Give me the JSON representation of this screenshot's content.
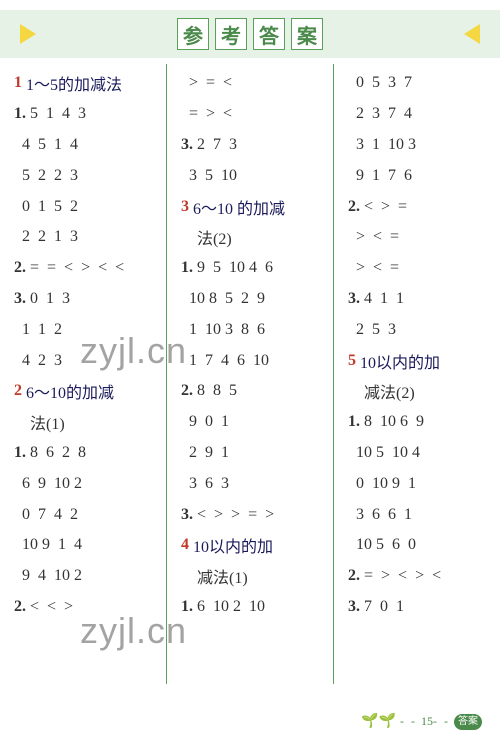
{
  "title_chars": [
    "参",
    "考",
    "答",
    "案"
  ],
  "page_number": "15",
  "brand": "答案圈",
  "watermark": "zyjl.cn",
  "colors": {
    "title_bg": "#e6f2e6",
    "title_border": "#5aa05a",
    "title_text": "#4a8a4a",
    "triangle": "#f5d742",
    "divider": "#5aa05a",
    "section_num": "#c0392b",
    "body_text": "#333333",
    "header_text": "#1a1a5a"
  },
  "col1": [
    {
      "t": "sec",
      "num": "1",
      "text": " 1～5的加减法"
    },
    {
      "t": "item",
      "num": "1.",
      "text": "5  1  4  3"
    },
    {
      "t": "plain",
      "text": "  4  5  1  4"
    },
    {
      "t": "plain",
      "text": "  5  2  2  3"
    },
    {
      "t": "plain",
      "text": "  0  1  5  2"
    },
    {
      "t": "plain",
      "text": "  2  2  1  3"
    },
    {
      "t": "item",
      "num": "2.",
      "text": "=  =  <  >  <  <"
    },
    {
      "t": "item",
      "num": "3.",
      "text": "0  1  3"
    },
    {
      "t": "plain",
      "text": "  1  1  2"
    },
    {
      "t": "plain",
      "text": "  4  2  3"
    },
    {
      "t": "sec",
      "num": "2",
      "text": " 6～10的加减"
    },
    {
      "t": "plain",
      "text": "    法(1)"
    },
    {
      "t": "item",
      "num": "1.",
      "text": "8  6  2  8"
    },
    {
      "t": "plain",
      "text": "  6  9  10 2"
    },
    {
      "t": "plain",
      "text": "  0  7  4  2"
    },
    {
      "t": "plain",
      "text": "  10 9  1  4"
    },
    {
      "t": "plain",
      "text": "  9  4  10 2"
    },
    {
      "t": "item",
      "num": "2.",
      "text": "<  <  >"
    }
  ],
  "col2": [
    {
      "t": "plain",
      "text": "  >  =  <"
    },
    {
      "t": "plain",
      "text": "  =  >  <"
    },
    {
      "t": "item",
      "num": "3.",
      "text": "2  7  3"
    },
    {
      "t": "plain",
      "text": "  3  5  10"
    },
    {
      "t": "sec",
      "num": "3",
      "text": " 6～10 的加减"
    },
    {
      "t": "plain",
      "text": "    法(2)"
    },
    {
      "t": "item",
      "num": "1.",
      "text": "9  5  10 4  6"
    },
    {
      "t": "plain",
      "text": "  10 8  5  2  9"
    },
    {
      "t": "plain",
      "text": "  1  10 3  8  6"
    },
    {
      "t": "plain",
      "text": "  1  7  4  6  10"
    },
    {
      "t": "item",
      "num": "2.",
      "text": "8  8  5"
    },
    {
      "t": "plain",
      "text": "  9  0  1"
    },
    {
      "t": "plain",
      "text": "  2  9  1"
    },
    {
      "t": "plain",
      "text": "  3  6  3"
    },
    {
      "t": "item",
      "num": "3.",
      "text": "<  >  >  =  >"
    },
    {
      "t": "sec",
      "num": "4",
      "text": " 10以内的加"
    },
    {
      "t": "plain",
      "text": "    减法(1)"
    },
    {
      "t": "item",
      "num": "1.",
      "text": "6  10 2  10"
    }
  ],
  "col3": [
    {
      "t": "plain",
      "text": "  0  5  3  7"
    },
    {
      "t": "plain",
      "text": "  2  3  7  4"
    },
    {
      "t": "plain",
      "text": "  3  1  10 3"
    },
    {
      "t": "plain",
      "text": "  9  1  7  6"
    },
    {
      "t": "item",
      "num": "2.",
      "text": "<  >  ="
    },
    {
      "t": "plain",
      "text": "  >  <  ="
    },
    {
      "t": "plain",
      "text": "  >  <  ="
    },
    {
      "t": "item",
      "num": "3.",
      "text": "4  1  1"
    },
    {
      "t": "plain",
      "text": "  2  5  3"
    },
    {
      "t": "sec",
      "num": "5",
      "text": " 10以内的加"
    },
    {
      "t": "plain",
      "text": "    减法(2)"
    },
    {
      "t": "item",
      "num": "1.",
      "text": "8  10 6  9"
    },
    {
      "t": "plain",
      "text": "  10 5  10 4"
    },
    {
      "t": "plain",
      "text": "  0  10 9  1"
    },
    {
      "t": "plain",
      "text": "  3  6  6  1"
    },
    {
      "t": "plain",
      "text": "  10 5  6  0"
    },
    {
      "t": "item",
      "num": "2.",
      "text": "=  >  <  >  <"
    },
    {
      "t": "item",
      "num": "3.",
      "text": "7  0  1"
    }
  ]
}
